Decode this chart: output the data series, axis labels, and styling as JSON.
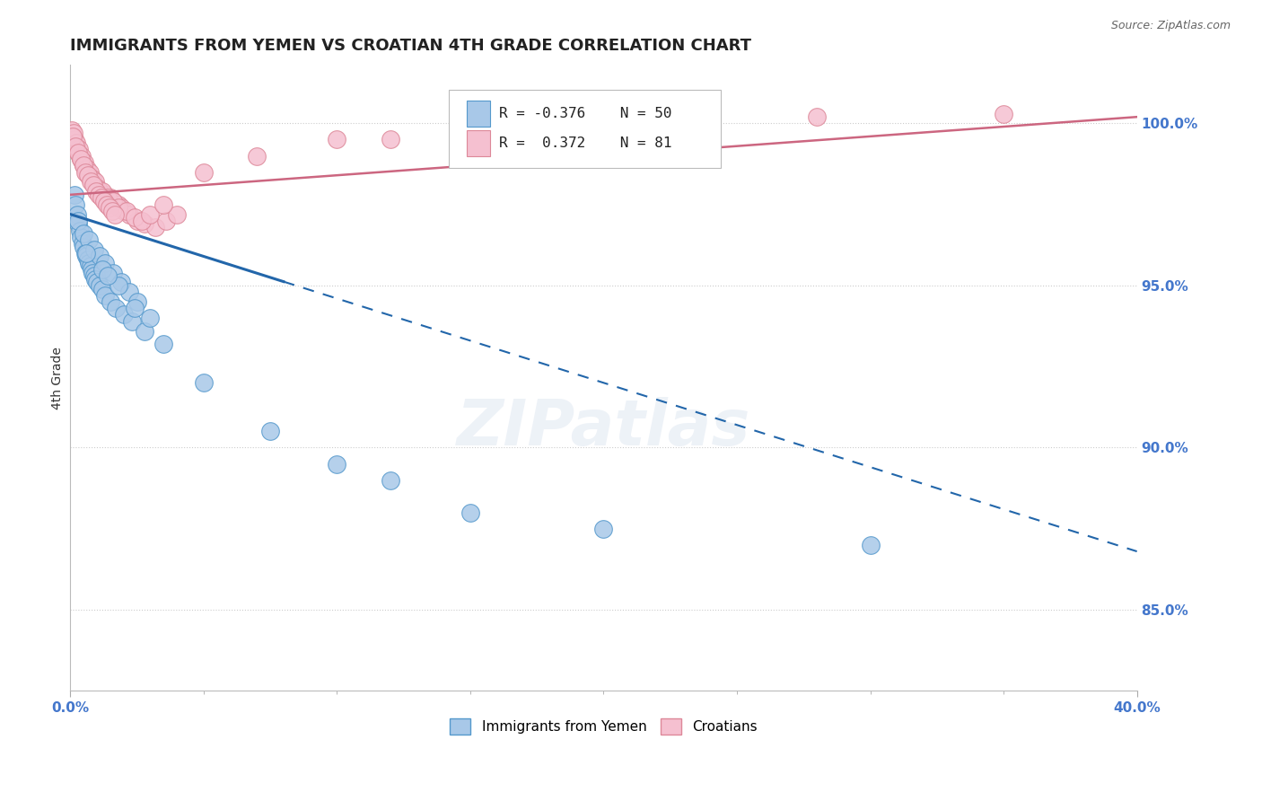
{
  "title": "IMMIGRANTS FROM YEMEN VS CROATIAN 4TH GRADE CORRELATION CHART",
  "source": "Source: ZipAtlas.com",
  "ylabel": "4th Grade",
  "y_ticks": [
    85.0,
    90.0,
    95.0,
    100.0
  ],
  "y_tick_labels": [
    "85.0%",
    "90.0%",
    "95.0%",
    "100.0%"
  ],
  "x_min": 0.0,
  "x_max": 40.0,
  "y_min": 82.5,
  "y_max": 101.8,
  "blue_R": "-0.376",
  "blue_N": "50",
  "pink_R": "0.372",
  "pink_N": "81",
  "blue_color": "#a8c8e8",
  "blue_edge_color": "#5599cc",
  "blue_line_color": "#2266aa",
  "pink_color": "#f5c0d0",
  "pink_edge_color": "#dd8899",
  "pink_line_color": "#cc6680",
  "legend_blue_label": "Immigrants from Yemen",
  "legend_pink_label": "Croatians",
  "watermark": "ZIPatlas",
  "blue_scatter_x": [
    0.15,
    0.2,
    0.25,
    0.3,
    0.35,
    0.4,
    0.45,
    0.5,
    0.55,
    0.6,
    0.65,
    0.7,
    0.75,
    0.8,
    0.85,
    0.9,
    0.95,
    1.0,
    1.1,
    1.2,
    1.3,
    1.5,
    1.7,
    2.0,
    2.3,
    2.8,
    0.3,
    0.5,
    0.7,
    0.9,
    1.1,
    1.3,
    1.6,
    1.9,
    2.2,
    2.5,
    3.0,
    1.2,
    1.8,
    2.4,
    3.5,
    5.0,
    7.5,
    10.0,
    12.0,
    15.0,
    20.0,
    30.0,
    0.6,
    1.4
  ],
  "blue_scatter_y": [
    97.8,
    97.5,
    97.2,
    96.9,
    96.7,
    96.5,
    96.3,
    96.2,
    96.0,
    95.9,
    95.8,
    95.7,
    95.6,
    95.5,
    95.4,
    95.3,
    95.2,
    95.1,
    95.0,
    94.9,
    94.7,
    94.5,
    94.3,
    94.1,
    93.9,
    93.6,
    97.0,
    96.6,
    96.4,
    96.1,
    95.9,
    95.7,
    95.4,
    95.1,
    94.8,
    94.5,
    94.0,
    95.5,
    95.0,
    94.3,
    93.2,
    92.0,
    90.5,
    89.5,
    89.0,
    88.0,
    87.5,
    87.0,
    96.0,
    95.3
  ],
  "pink_scatter_x": [
    0.05,
    0.1,
    0.15,
    0.2,
    0.25,
    0.3,
    0.35,
    0.4,
    0.45,
    0.5,
    0.55,
    0.6,
    0.65,
    0.7,
    0.75,
    0.8,
    0.85,
    0.9,
    0.95,
    1.0,
    1.1,
    1.2,
    1.3,
    1.4,
    1.5,
    1.6,
    1.7,
    1.8,
    1.9,
    2.0,
    2.2,
    2.5,
    2.8,
    3.2,
    3.6,
    4.0,
    0.12,
    0.22,
    0.32,
    0.42,
    0.52,
    0.62,
    0.72,
    0.82,
    0.92,
    1.02,
    1.22,
    1.42,
    1.62,
    1.82,
    2.1,
    2.4,
    2.7,
    3.0,
    3.5,
    5.0,
    7.0,
    10.0,
    12.0,
    15.0,
    18.0,
    22.0,
    28.0,
    35.0,
    0.08,
    0.18,
    0.28,
    0.38,
    0.48,
    0.58,
    0.68,
    0.78,
    0.88,
    0.98,
    1.08,
    1.18,
    1.28,
    1.38,
    1.48,
    1.58,
    1.68
  ],
  "pink_scatter_y": [
    99.8,
    99.6,
    99.5,
    99.3,
    99.2,
    99.1,
    99.0,
    98.9,
    98.8,
    98.7,
    98.6,
    98.5,
    98.4,
    98.4,
    98.3,
    98.3,
    98.2,
    98.1,
    98.1,
    98.0,
    97.9,
    97.8,
    97.8,
    97.7,
    97.7,
    97.6,
    97.5,
    97.5,
    97.4,
    97.3,
    97.2,
    97.0,
    96.9,
    96.8,
    97.0,
    97.2,
    99.7,
    99.4,
    99.2,
    99.0,
    98.8,
    98.6,
    98.5,
    98.3,
    98.2,
    98.0,
    97.9,
    97.7,
    97.6,
    97.4,
    97.3,
    97.1,
    97.0,
    97.2,
    97.5,
    98.5,
    99.0,
    99.5,
    99.5,
    99.8,
    100.0,
    100.1,
    100.2,
    100.3,
    99.6,
    99.3,
    99.1,
    98.9,
    98.7,
    98.5,
    98.4,
    98.2,
    98.1,
    97.9,
    97.8,
    97.7,
    97.6,
    97.5,
    97.4,
    97.3,
    97.2
  ],
  "blue_trend_x0": 0.0,
  "blue_trend_y0": 97.2,
  "blue_trend_x1": 40.0,
  "blue_trend_y1": 86.8,
  "blue_solid_end_x": 8.0,
  "pink_trend_x0": 0.0,
  "pink_trend_y0": 97.8,
  "pink_trend_x1": 40.0,
  "pink_trend_y1": 100.2,
  "grid_color": "#cccccc",
  "bg_color": "#ffffff",
  "title_fontsize": 13,
  "tick_label_color": "#4477cc"
}
